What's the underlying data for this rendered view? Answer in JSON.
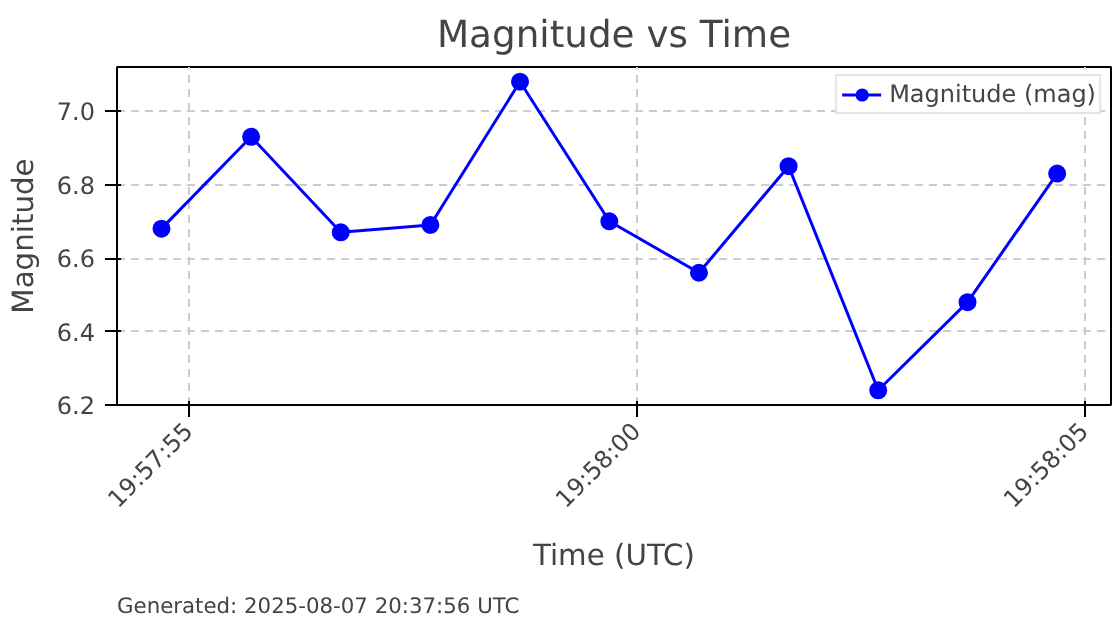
{
  "chart_data": {
    "type": "line",
    "title": "Magnitude vs Time",
    "xlabel": "Time (UTC)",
    "ylabel": "Magnitude",
    "x": [
      19.965194,
      19.965472,
      19.96575,
      19.966028,
      19.966306,
      19.966583,
      19.966861,
      19.967139,
      19.967417,
      19.967694,
      19.967972
    ],
    "series": [
      {
        "name": "Magnitude (mag)",
        "color": "#0000ff",
        "values": [
          6.68,
          6.93,
          6.67,
          6.69,
          7.08,
          6.7,
          6.56,
          6.85,
          6.24,
          6.48,
          6.83
        ]
      }
    ],
    "xlim": [
      19.965056,
      19.968139
    ],
    "xticks": [
      {
        "value": 19.965278,
        "label": "19:57:55"
      },
      {
        "value": 19.966667,
        "label": "19:58:00"
      },
      {
        "value": 19.968056,
        "label": "19:58:05"
      }
    ],
    "ylim": [
      6.2,
      7.12
    ],
    "yticks": [
      6.2,
      6.4,
      6.6,
      6.8,
      {
        "value": 7.0,
        "label": "7.0"
      }
    ],
    "grid": true,
    "legend": "top right",
    "marker": "circle",
    "line_style": "solid",
    "annotations": [
      "Generated: 2025-08-07 20:37:56 UTC"
    ]
  }
}
